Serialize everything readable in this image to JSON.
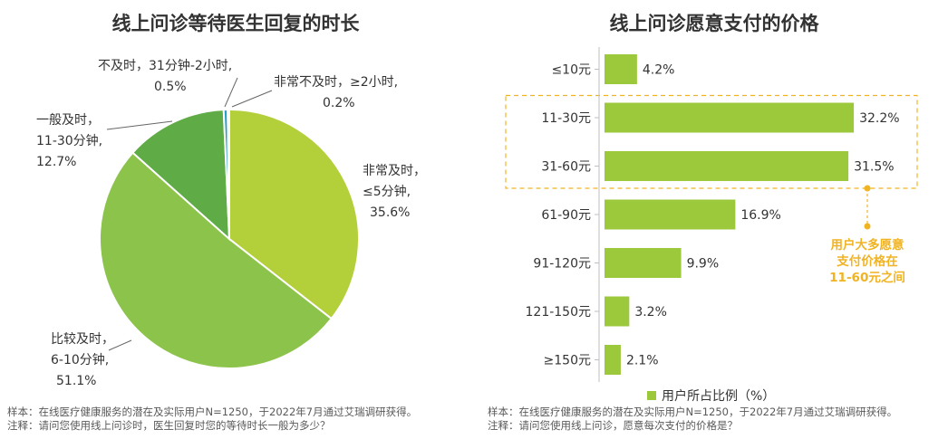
{
  "chart_data": [
    {
      "type": "pie",
      "title": "线上问诊等待医生回复的时长",
      "slices": [
        {
          "label_lines": [
            "非常及时，",
            "≤5分钟,"
          ],
          "value": 35.6,
          "value_text": "35.6%",
          "color": "#b3cf3a"
        },
        {
          "label_lines": [
            "比较及时，",
            "6-10分钟,"
          ],
          "value": 51.1,
          "value_text": "51.1%",
          "color": "#8cc34a"
        },
        {
          "label_lines": [
            "一般及时，",
            "11-30分钟,"
          ],
          "value": 12.7,
          "value_text": "12.7%",
          "color": "#5fab45"
        },
        {
          "label_lines": [
            "不及时，31分钟-2小时,"
          ],
          "value": 0.5,
          "value_text": "0.5%",
          "color": "#2a9fc4"
        },
        {
          "label_lines": [
            "非常不及时，≥2小时,"
          ],
          "value": 0.2,
          "value_text": "0.2%",
          "color": "#9fd1e0"
        }
      ],
      "notes": [
        "样本：在线医疗健康服务的潜在及实际用户N=1250，于2022年7月通过艾瑞调研获得。",
        "注释：请问您使用线上问诊时，医生回复时您的等待时长一般为多少？"
      ]
    },
    {
      "type": "bar",
      "orientation": "horizontal",
      "title": "线上问诊愿意支付的价格",
      "categories": [
        "≤10元",
        "11-30元",
        "31-60元",
        "61-90元",
        "91-120元",
        "121-150元",
        "≥150元"
      ],
      "values": [
        4.2,
        32.2,
        31.5,
        16.9,
        9.9,
        3.2,
        2.1
      ],
      "value_labels": [
        "4.2%",
        "32.2%",
        "31.5%",
        "16.9%",
        "9.9%",
        "3.2%",
        "2.1%"
      ],
      "xlim": [
        0,
        35
      ],
      "color": "#9cc83c",
      "legend": {
        "label": "用户所占比例（%）",
        "position": "bottom"
      },
      "highlight": {
        "categories": [
          "11-30元",
          "31-60元"
        ],
        "color": "#f0b323"
      },
      "annotation": [
        "用户大多愿意",
        "支付价格在",
        "11-60元之间"
      ],
      "notes": [
        "样本：在线医疗健康服务的潜在及实际用户N=1250，于2022年7月通过艾瑞调研获得。",
        "注释：请问您使用线上问诊，愿意每次支付的价格是？"
      ]
    }
  ]
}
